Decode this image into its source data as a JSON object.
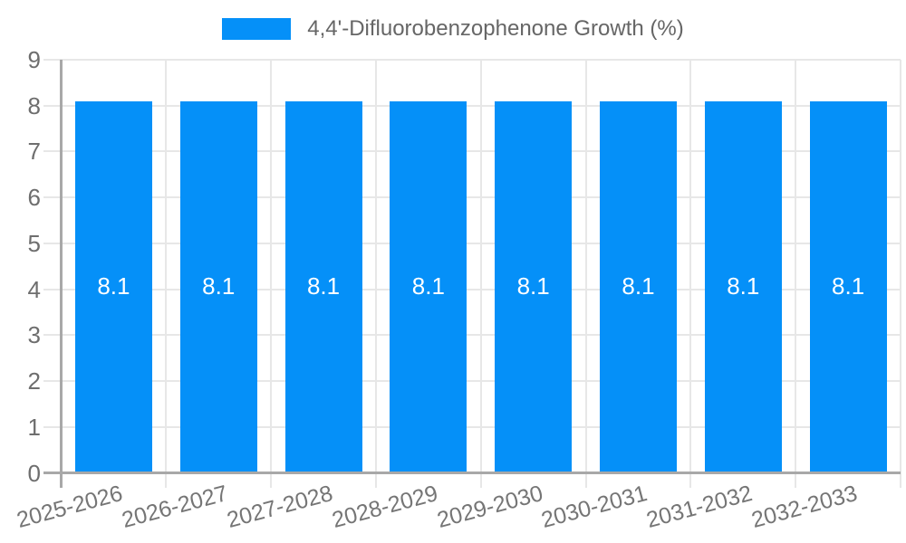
{
  "chart_data": {
    "type": "bar",
    "title": "4,4'-Difluorobenzophenone Growth (%)",
    "legend_entries": [
      "4,4'-Difluorobenzophenone Growth (%)"
    ],
    "legend_position": "top",
    "categories": [
      "2025-2026",
      "2026-2027",
      "2027-2028",
      "2028-2029",
      "2029-2030",
      "2030-2031",
      "2031-2032",
      "2032-2033"
    ],
    "series": [
      {
        "name": "4,4'-Difluorobenzophenone Growth (%)",
        "values": [
          8.1,
          8.1,
          8.1,
          8.1,
          8.1,
          8.1,
          8.1,
          8.1
        ]
      }
    ],
    "bar_value_labels": [
      "8.1",
      "8.1",
      "8.1",
      "8.1",
      "8.1",
      "8.1",
      "8.1",
      "8.1"
    ],
    "xlabel": "",
    "ylabel": "",
    "ylim": [
      0,
      9
    ],
    "ytick_labels": [
      "0",
      "1",
      "2",
      "3",
      "4",
      "5",
      "6",
      "7",
      "8",
      "9"
    ],
    "grid": true,
    "colors": {
      "bar": "#0590f8",
      "grid": "#e7e7e7",
      "axis": "#a8a8a8",
      "y_tick_text": "#6e6e6e",
      "x_tick_text": "#757575",
      "legend_text": "#666666",
      "bar_label_text": "#ffffff",
      "background": "#ffffff"
    }
  }
}
